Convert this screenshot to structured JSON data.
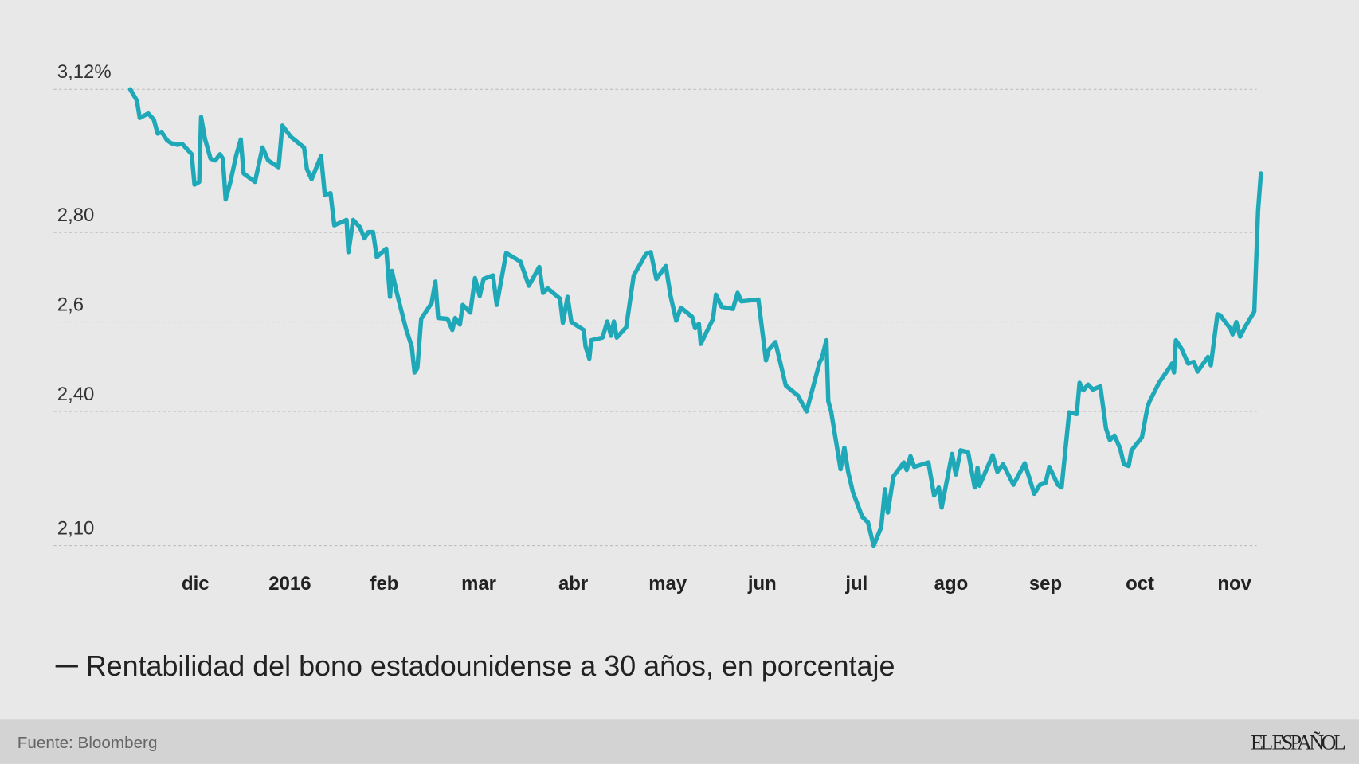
{
  "chart_data": {
    "type": "line",
    "legend_title": "Rentabilidad del bono estadounidense a 30 años, en porcentaje",
    "source": "Fuente: Bloomberg",
    "logo": "EL ESPAÑOL",
    "xlim": [
      -1.5,
      11.3
    ],
    "xticks": [
      {
        "value": 0,
        "label": "dic"
      },
      {
        "value": 1,
        "label": "2016"
      },
      {
        "value": 2,
        "label": "feb"
      },
      {
        "value": 3,
        "label": "mar"
      },
      {
        "value": 4,
        "label": "abr"
      },
      {
        "value": 5,
        "label": "may"
      },
      {
        "value": 6,
        "label": "jun"
      },
      {
        "value": 7,
        "label": "jul"
      },
      {
        "value": 8,
        "label": "ago"
      },
      {
        "value": 9,
        "label": "sep"
      },
      {
        "value": 10,
        "label": "oct"
      },
      {
        "value": 11,
        "label": "nov"
      }
    ],
    "ylim": [
      2.1,
      3.12
    ],
    "yticks": [
      {
        "value": 3.12,
        "label": "3,12%"
      },
      {
        "value": 2.8,
        "label": "2,80"
      },
      {
        "value": 2.6,
        "label": "2,6"
      },
      {
        "value": 2.4,
        "label": "2,40"
      },
      {
        "value": 2.1,
        "label": "2,10"
      }
    ],
    "grid": true,
    "x": [
      -0.69,
      -0.62,
      -0.59,
      -0.5,
      -0.44,
      -0.4,
      -0.36,
      -0.3,
      -0.26,
      -0.19,
      -0.14,
      -0.04,
      -0.01,
      0.04,
      0.06,
      0.1,
      0.16,
      0.21,
      0.26,
      0.29,
      0.32,
      0.37,
      0.43,
      0.48,
      0.51,
      0.63,
      0.71,
      0.77,
      0.88,
      0.92,
      1.01,
      1.15,
      1.18,
      1.23,
      1.33,
      1.37,
      1.43,
      1.47,
      1.6,
      1.62,
      1.67,
      1.74,
      1.79,
      1.83,
      1.88,
      1.92,
      2.02,
      2.06,
      2.08,
      2.13,
      2.23,
      2.29,
      2.32,
      2.35,
      2.39,
      2.5,
      2.54,
      2.57,
      2.67,
      2.72,
      2.75,
      2.8,
      2.83,
      2.91,
      2.96,
      3.01,
      3.05,
      3.15,
      3.19,
      3.29,
      3.44,
      3.53,
      3.64,
      3.68,
      3.73,
      3.86,
      3.89,
      3.94,
      3.98,
      4.11,
      4.13,
      4.17,
      4.19,
      4.31,
      4.36,
      4.4,
      4.43,
      4.46,
      4.56,
      4.64,
      4.77,
      4.82,
      4.88,
      4.98,
      5.03,
      5.09,
      5.14,
      5.26,
      5.29,
      5.33,
      5.35,
      5.48,
      5.51,
      5.57,
      5.69,
      5.74,
      5.78,
      5.96,
      6.04,
      6.07,
      6.14,
      6.25,
      6.38,
      6.47,
      6.61,
      6.63,
      6.68,
      6.7,
      6.73,
      6.83,
      6.87,
      6.91,
      6.96,
      7.06,
      7.12,
      7.18,
      7.26,
      7.3,
      7.33,
      7.39,
      7.5,
      7.53,
      7.57,
      7.61,
      7.76,
      7.82,
      7.87,
      7.9,
      8.01,
      8.05,
      8.1,
      8.18,
      8.25,
      8.28,
      8.3,
      8.44,
      8.49,
      8.55,
      8.66,
      8.78,
      8.88,
      8.94,
      9.0,
      9.04,
      9.13,
      9.17,
      9.25,
      9.33,
      9.36,
      9.4,
      9.45,
      9.5,
      9.58,
      9.64,
      9.68,
      9.73,
      9.79,
      9.83,
      9.88,
      9.91,
      10.02,
      10.08,
      10.1,
      10.17,
      10.2,
      10.29,
      10.34,
      10.36,
      10.38,
      10.44,
      10.51,
      10.57,
      10.61,
      10.72,
      10.75,
      10.82,
      10.85,
      10.96,
      10.98,
      11.02,
      11.06,
      11.11,
      11.21,
      11.25,
      11.28
    ],
    "series": [
      {
        "name": "Rentabilidad del bono estadounidense a 30 años, en porcentaje",
        "color": "#1fa9b8",
        "values": [
          3.12,
          3.095,
          3.056,
          3.066,
          3.052,
          3.021,
          3.025,
          3.006,
          3.0,
          2.996,
          2.998,
          2.975,
          2.907,
          2.913,
          3.058,
          3.01,
          2.965,
          2.961,
          2.975,
          2.965,
          2.874,
          2.913,
          2.971,
          3.008,
          2.932,
          2.913,
          2.99,
          2.961,
          2.946,
          3.039,
          3.014,
          2.99,
          2.942,
          2.919,
          2.971,
          2.884,
          2.888,
          2.816,
          2.828,
          2.756,
          2.828,
          2.812,
          2.787,
          2.801,
          2.801,
          2.745,
          2.764,
          2.656,
          2.714,
          2.667,
          2.584,
          2.545,
          2.487,
          2.497,
          2.607,
          2.642,
          2.69,
          2.609,
          2.607,
          2.582,
          2.609,
          2.594,
          2.638,
          2.621,
          2.698,
          2.658,
          2.696,
          2.704,
          2.638,
          2.754,
          2.735,
          2.681,
          2.723,
          2.665,
          2.675,
          2.652,
          2.598,
          2.656,
          2.6,
          2.582,
          2.545,
          2.518,
          2.559,
          2.565,
          2.601,
          2.569,
          2.601,
          2.565,
          2.588,
          2.704,
          2.752,
          2.756,
          2.696,
          2.725,
          2.658,
          2.603,
          2.632,
          2.611,
          2.586,
          2.596,
          2.551,
          2.607,
          2.661,
          2.634,
          2.629,
          2.665,
          2.646,
          2.65,
          2.514,
          2.538,
          2.555,
          2.458,
          2.435,
          2.4,
          2.511,
          2.518,
          2.559,
          2.423,
          2.4,
          2.271,
          2.319,
          2.265,
          2.22,
          2.164,
          2.152,
          2.1,
          2.141,
          2.226,
          2.174,
          2.255,
          2.286,
          2.269,
          2.3,
          2.276,
          2.286,
          2.212,
          2.23,
          2.185,
          2.305,
          2.259,
          2.313,
          2.309,
          2.23,
          2.274,
          2.234,
          2.302,
          2.265,
          2.282,
          2.236,
          2.284,
          2.216,
          2.236,
          2.24,
          2.276,
          2.236,
          2.23,
          2.398,
          2.394,
          2.464,
          2.447,
          2.46,
          2.449,
          2.456,
          2.362,
          2.336,
          2.346,
          2.317,
          2.282,
          2.278,
          2.313,
          2.342,
          2.41,
          2.422,
          2.451,
          2.464,
          2.491,
          2.507,
          2.487,
          2.559,
          2.54,
          2.507,
          2.511,
          2.489,
          2.522,
          2.503,
          2.617,
          2.615,
          2.584,
          2.572,
          2.6,
          2.567,
          2.588,
          2.623,
          2.849,
          2.932
        ]
      }
    ]
  }
}
